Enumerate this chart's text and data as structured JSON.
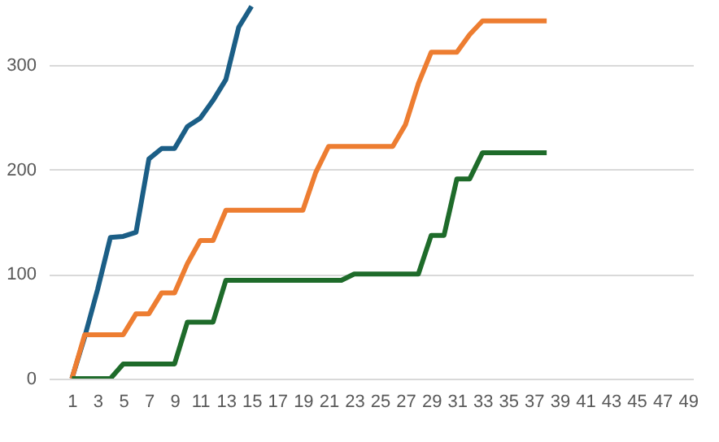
{
  "chart_data": {
    "type": "line",
    "x": [
      1,
      2,
      3,
      4,
      5,
      6,
      7,
      8,
      9,
      10,
      11,
      12,
      13,
      14,
      15,
      16,
      17,
      18,
      19,
      20,
      21,
      22,
      23,
      24,
      25,
      26,
      27,
      28,
      29,
      30,
      31,
      32,
      33,
      34,
      35,
      36,
      37,
      38
    ],
    "series": [
      {
        "color": "#1b5e86",
        "values": [
          0,
          40,
          85,
          135,
          136,
          140,
          210,
          220,
          220,
          241,
          249,
          266,
          286,
          336,
          356,
          null,
          null,
          null,
          null,
          null,
          null,
          null,
          null,
          null,
          null,
          null,
          null,
          null,
          null,
          null,
          null,
          null,
          null,
          null,
          null,
          null,
          null,
          null
        ]
      },
      {
        "color": "#ed7d31",
        "values": [
          0,
          42,
          42,
          42,
          42,
          62,
          62,
          82,
          82,
          110,
          132,
          132,
          161,
          161,
          161,
          161,
          161,
          161,
          161,
          197,
          222,
          222,
          222,
          222,
          222,
          222,
          243,
          282,
          312,
          312,
          312,
          329,
          342,
          342,
          342,
          342,
          342,
          342
        ]
      },
      {
        "color": "#1e6b2a",
        "values": [
          0,
          0,
          0,
          0,
          14,
          14,
          14,
          14,
          14,
          54,
          54,
          54,
          94,
          94,
          94,
          94,
          94,
          94,
          94,
          94,
          94,
          94,
          100,
          100,
          100,
          100,
          100,
          100,
          137,
          137,
          191,
          191,
          216,
          216,
          216,
          216,
          216,
          216
        ]
      }
    ],
    "xlim": [
      -0.8,
      49.4
    ],
    "xticks": [
      1,
      3,
      5,
      7,
      9,
      11,
      13,
      15,
      17,
      19,
      21,
      23,
      25,
      27,
      29,
      31,
      33,
      35,
      37,
      39,
      41,
      43,
      45,
      47,
      49
    ],
    "ylim": [
      0,
      362
    ],
    "yticks": [
      0,
      100,
      200,
      300
    ],
    "grid": "y",
    "line_style": "solid",
    "marker": "none"
  }
}
